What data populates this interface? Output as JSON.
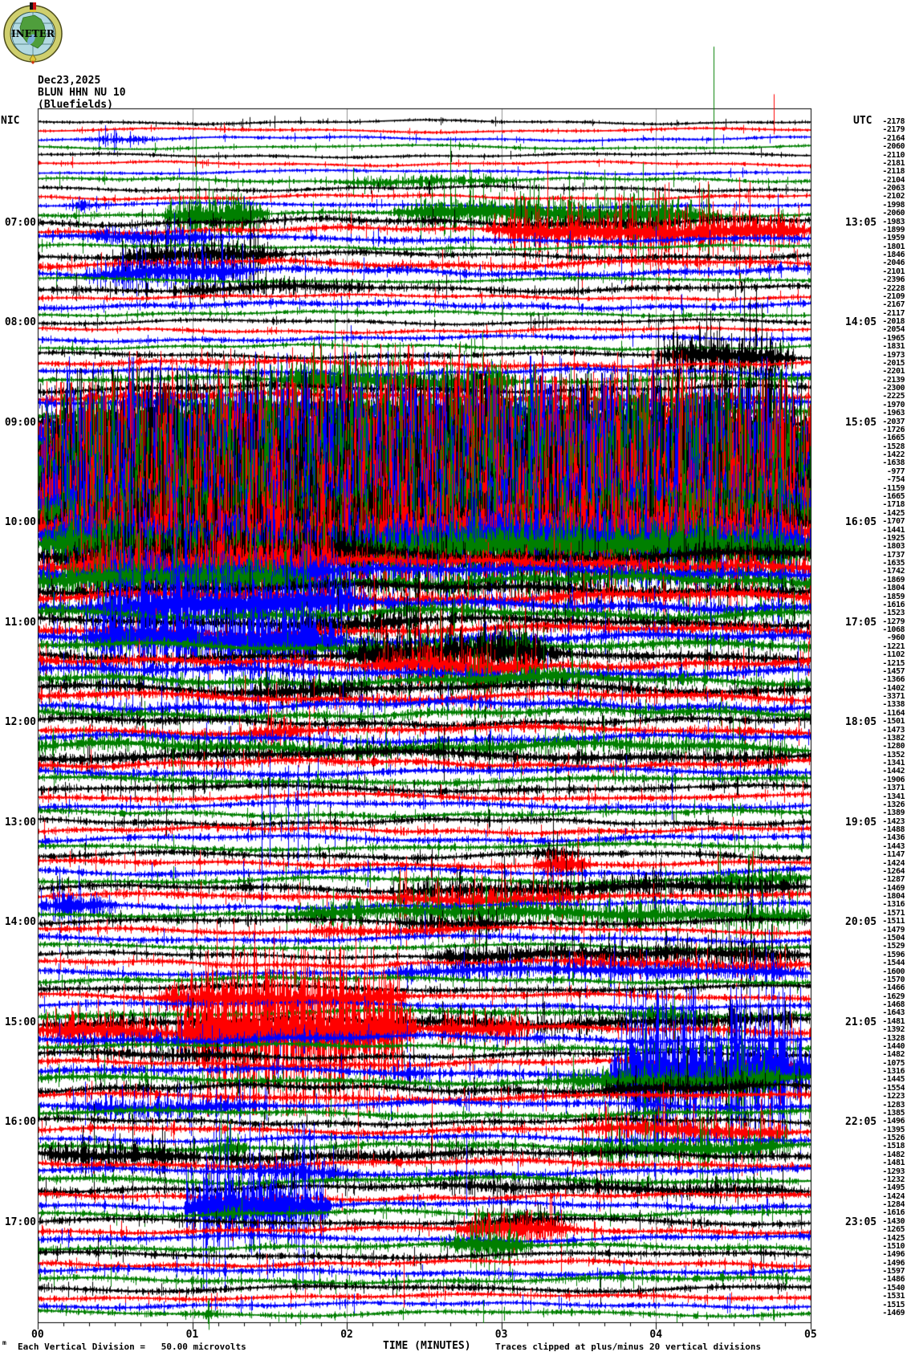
{
  "header": {
    "date": "Dec23,2025",
    "station": "BLUN HHN NU 10",
    "location": "(Bluefields)",
    "logo_text": "INETER",
    "tz_left": "NIC",
    "tz_right": "UTC"
  },
  "footer": {
    "scale_note": "Each Vertical Division =   50.00 microvolts",
    "axis_title": "TIME (MINUTES)",
    "clip_note": "Traces clipped at plus/minus 20 vertical divisions",
    "tiny_mark": "m"
  },
  "x_axis": {
    "tick_labels": [
      "00",
      "01",
      "02",
      "03",
      "04",
      "05"
    ],
    "minor_per_major": 6
  },
  "colors": {
    "trace_cycle": [
      "#000000",
      "#ff0000",
      "#0000ff",
      "#007f00"
    ],
    "grid": "#909090",
    "frame": "#000000",
    "logo_ring": "#cfcf6e",
    "logo_sea": "#b2d9e2",
    "logo_land": "#4f9e3c",
    "logo_lake": "#7ab0d8"
  },
  "hour_rows": [
    {
      "row": 13,
      "nic": "07:00",
      "utc": "13:05"
    },
    {
      "row": 25,
      "nic": "08:00",
      "utc": "14:05"
    },
    {
      "row": 37,
      "nic": "09:00",
      "utc": "15:05"
    },
    {
      "row": 49,
      "nic": "10:00",
      "utc": "16:05"
    },
    {
      "row": 61,
      "nic": "11:00",
      "utc": "17:05"
    },
    {
      "row": 73,
      "nic": "12:00",
      "utc": "18:05"
    },
    {
      "row": 85,
      "nic": "13:00",
      "utc": "19:05"
    },
    {
      "row": 97,
      "nic": "14:00",
      "utc": "20:05"
    },
    {
      "row": 109,
      "nic": "15:00",
      "utc": "21:05"
    },
    {
      "row": 121,
      "nic": "16:00",
      "utc": "22:05"
    },
    {
      "row": 133,
      "nic": "17:00",
      "utc": "23:05"
    }
  ],
  "chart_data": {
    "type": "seismogram-helicorder",
    "station_code": "BLUN HHN NU 10",
    "station_name": "Bluefields",
    "date": "Dec23,2025",
    "start_local": "06:00",
    "end_local": "18:00",
    "minutes_per_line": 5,
    "lines": 144,
    "utc_offset_hours": 6,
    "vertical_division_microvolts": 50.0,
    "clip_divisions": 20,
    "traces": [
      [
        -2178,
        3
      ],
      [
        -2179,
        3
      ],
      [
        -2164,
        3,
        [
          [
            0.25,
            0.8,
            9
          ]
        ]
      ],
      [
        -2060,
        3
      ],
      [
        -2110,
        3
      ],
      [
        -2181,
        3
      ],
      [
        -2118,
        3
      ],
      [
        -2104,
        4,
        [
          [
            1.9,
            3.1,
            11
          ]
        ]
      ],
      [
        -2063,
        4
      ],
      [
        -2102,
        4
      ],
      [
        -1998,
        4,
        [
          [
            0.15,
            0.5,
            12
          ]
        ]
      ],
      [
        -2060,
        5,
        [
          [
            0.8,
            1.5,
            38
          ],
          [
            2.3,
            4.4,
            30
          ]
        ]
      ],
      [
        -1983,
        7,
        [
          [
            2.9,
            4.3,
            12
          ]
        ]
      ],
      [
        -1899,
        6,
        [
          [
            2.9,
            5,
            32
          ]
        ]
      ],
      [
        -1959,
        6,
        [
          [
            0.2,
            1.2,
            16
          ]
        ]
      ],
      [
        -1801,
        4
      ],
      [
        -1846,
        6,
        [
          [
            0.5,
            1.6,
            26
          ]
        ]
      ],
      [
        -2046,
        7
      ],
      [
        -2101,
        7,
        [
          [
            0.3,
            1.4,
            28
          ]
        ]
      ],
      [
        -2396,
        4
      ],
      [
        -2228,
        6,
        [
          [
            0.8,
            2.2,
            13
          ]
        ]
      ],
      [
        -2109,
        4
      ],
      [
        -2167,
        6
      ],
      [
        -2117,
        4
      ],
      [
        -2018,
        4
      ],
      [
        -2054,
        4
      ],
      [
        -1965,
        5
      ],
      [
        -1831,
        4
      ],
      [
        -1973,
        5,
        [
          [
            4.0,
            4.9,
            36
          ]
        ]
      ],
      [
        -2015,
        6
      ],
      [
        -2201,
        6
      ],
      [
        -2139,
        6,
        [
          [
            1.5,
            3.1,
            30
          ]
        ]
      ],
      [
        -2300,
        7
      ],
      [
        -2225,
        8
      ],
      [
        -1970,
        9,
        [
          [
            0.5,
            1.1,
            18
          ]
        ]
      ],
      [
        -1963,
        10,
        [
          [
            1.0,
            4.5,
            22
          ]
        ]
      ],
      [
        -2037,
        12,
        [
          [
            0.3,
            4.8,
            28
          ]
        ]
      ],
      [
        -1726,
        18,
        [
          [
            0.5,
            4.6,
            65
          ]
        ]
      ],
      [
        -1665,
        22,
        [
          [
            0,
            5,
            60
          ]
        ]
      ],
      [
        -1528,
        24,
        [
          [
            0,
            5,
            70
          ]
        ]
      ],
      [
        -1422,
        28,
        [
          [
            0,
            5,
            88
          ]
        ]
      ],
      [
        -1638,
        30,
        [
          [
            0,
            5,
            100
          ]
        ]
      ],
      [
        -977,
        32,
        [
          [
            0,
            5,
            100
          ]
        ]
      ],
      [
        -754,
        32,
        [
          [
            0,
            5,
            100
          ]
        ]
      ],
      [
        -1159,
        32,
        [
          [
            0,
            5,
            92
          ]
        ]
      ],
      [
        -1665,
        30,
        [
          [
            0,
            5,
            88
          ]
        ]
      ],
      [
        -1718,
        28,
        [
          [
            0,
            5,
            80
          ]
        ]
      ],
      [
        -1425,
        26,
        [
          [
            0,
            5,
            70
          ]
        ]
      ],
      [
        -1707,
        24,
        [
          [
            0,
            5,
            60
          ]
        ]
      ],
      [
        -1441,
        24,
        [
          [
            0,
            5,
            68
          ]
        ]
      ],
      [
        -1925,
        20,
        [
          [
            0,
            5,
            50
          ]
        ]
      ],
      [
        -1803,
        18,
        [
          [
            0,
            5,
            45
          ]
        ]
      ],
      [
        -1737,
        16,
        [
          [
            0.2,
            2.2,
            55
          ]
        ]
      ],
      [
        -1635,
        15,
        [
          [
            0.2,
            2.0,
            48
          ]
        ]
      ],
      [
        -1742,
        14,
        [
          [
            0.3,
            2.0,
            40
          ]
        ]
      ],
      [
        -1869,
        13,
        [
          [
            0,
            1.8,
            34
          ]
        ]
      ],
      [
        -1804,
        12
      ],
      [
        -1859,
        12
      ],
      [
        -1616,
        12,
        [
          [
            0.3,
            2.1,
            46
          ]
        ]
      ],
      [
        -1523,
        11
      ],
      [
        -1279,
        10,
        [
          [
            1.5,
            2.6,
            22
          ]
        ]
      ],
      [
        -1068,
        10
      ],
      [
        -960,
        11,
        [
          [
            0.3,
            2.0,
            55
          ]
        ]
      ],
      [
        -1221,
        10,
        [
          [
            2.0,
            3.3,
            28
          ]
        ]
      ],
      [
        -1102,
        10,
        [
          [
            2.0,
            3.4,
            36
          ]
        ]
      ],
      [
        -1215,
        10,
        [
          [
            2.1,
            3.3,
            32
          ]
        ]
      ],
      [
        -1457,
        10
      ],
      [
        -1366,
        10,
        [
          [
            2.6,
            3.6,
            24
          ]
        ]
      ],
      [
        -1402,
        10,
        [
          [
            1.2,
            2.2,
            20
          ]
        ]
      ],
      [
        -3371,
        9
      ],
      [
        -1338,
        9
      ],
      [
        -1164,
        9
      ],
      [
        -1501,
        8
      ],
      [
        -1473,
        8,
        [
          [
            1.3,
            1.8,
            26
          ]
        ]
      ],
      [
        -1382,
        8
      ],
      [
        -1280,
        9,
        [
          [
            0,
            5,
            14
          ]
        ]
      ],
      [
        -1352,
        9,
        [
          [
            0,
            5,
            12
          ]
        ]
      ],
      [
        -1341,
        8
      ],
      [
        -1442,
        7
      ],
      [
        -1906,
        7
      ],
      [
        -1371,
        7
      ],
      [
        -1341,
        6
      ],
      [
        -1326,
        6
      ],
      [
        -1389,
        6
      ],
      [
        -1423,
        6
      ],
      [
        -1488,
        6
      ],
      [
        -1436,
        6
      ],
      [
        -1443,
        6
      ],
      [
        -1147,
        6,
        [
          [
            3.2,
            3.5,
            25
          ]
        ]
      ],
      [
        -1424,
        6,
        [
          [
            3.2,
            3.6,
            30
          ]
        ]
      ],
      [
        -1264,
        6
      ],
      [
        -1287,
        6,
        [
          [
            4.2,
            5,
            18
          ]
        ]
      ],
      [
        -1469,
        7,
        [
          [
            2.3,
            5,
            18
          ]
        ]
      ],
      [
        -1804,
        7,
        [
          [
            2.2,
            3.5,
            22
          ]
        ]
      ],
      [
        -1316,
        6,
        [
          [
            0,
            0.5,
            28
          ]
        ]
      ],
      [
        -1571,
        6,
        [
          [
            1.6,
            5,
            22
          ]
        ]
      ],
      [
        -1511,
        6,
        [
          [
            2.3,
            3.1,
            16
          ]
        ]
      ],
      [
        -1479,
        6,
        [
          [
            1.7,
            2.9,
            14
          ]
        ]
      ],
      [
        -1504,
        6
      ],
      [
        -1529,
        5
      ],
      [
        -1596,
        5,
        [
          [
            2.5,
            5,
            20
          ]
        ]
      ],
      [
        -1544,
        6,
        [
          [
            3.3,
            5,
            14
          ]
        ]
      ],
      [
        -1600,
        6,
        [
          [
            2.2,
            5,
            16
          ]
        ]
      ],
      [
        -1570,
        6
      ],
      [
        -1466,
        6,
        [
          [
            1.0,
            1.6,
            10
          ]
        ]
      ],
      [
        -1629,
        6,
        [
          [
            0.75,
            2.4,
            32
          ]
        ]
      ],
      [
        -1468,
        6
      ],
      [
        -1643,
        7,
        [
          [
            3.8,
            4.4,
            18
          ]
        ]
      ],
      [
        -1481,
        7,
        [
          [
            0,
            1.3,
            14
          ],
          [
            2.2,
            5,
            16
          ]
        ]
      ],
      [
        -1392,
        8,
        [
          [
            0,
            0.9,
            28
          ],
          [
            0.9,
            2.45,
            85
          ],
          [
            2.45,
            3.2,
            25
          ]
        ]
      ],
      [
        -1328,
        7,
        [
          [
            0,
            2.3,
            12
          ]
        ]
      ],
      [
        -1440,
        6
      ],
      [
        -1482,
        6,
        [
          [
            0.3,
            1.5,
            14
          ]
        ]
      ],
      [
        -1075,
        6
      ],
      [
        -1316,
        8,
        [
          [
            2.3,
            2.5,
            30
          ],
          [
            3.7,
            5,
            85
          ]
        ]
      ],
      [
        -1445,
        8,
        [
          [
            3.4,
            4.9,
            28
          ]
        ]
      ],
      [
        -1554,
        8,
        [
          [
            3.6,
            4.7,
            20
          ]
        ]
      ],
      [
        -1223,
        7
      ],
      [
        -1283,
        7,
        [
          [
            0.2,
            1.5,
            20
          ]
        ]
      ],
      [
        -1385,
        7
      ],
      [
        -1496,
        6
      ],
      [
        -1395,
        6,
        [
          [
            3.5,
            4.9,
            22
          ]
        ]
      ],
      [
        -1526,
        6
      ],
      [
        -1518,
        7,
        [
          [
            1.1,
            1.35,
            40
          ],
          [
            3.4,
            4.9,
            26
          ]
        ]
      ],
      [
        -1482,
        8,
        [
          [
            0,
            1.05,
            24
          ],
          [
            1.05,
            2.9,
            13
          ]
        ]
      ],
      [
        -1481,
        7
      ],
      [
        -1293,
        7,
        [
          [
            1.25,
            2.1,
            18
          ]
        ]
      ],
      [
        -1232,
        7
      ],
      [
        -1495,
        7,
        [
          [
            2.5,
            5,
            14
          ]
        ]
      ],
      [
        -1424,
        6
      ],
      [
        -1284,
        6,
        [
          [
            0.95,
            1.9,
            65
          ]
        ]
      ],
      [
        -1616,
        6,
        [
          [
            1.0,
            1.5,
            12
          ]
        ]
      ],
      [
        -1430,
        6,
        [
          [
            2.8,
            3.4,
            20
          ]
        ]
      ],
      [
        -1265,
        6,
        [
          [
            2.7,
            3.5,
            30
          ]
        ]
      ],
      [
        -1425,
        6
      ],
      [
        -1510,
        6,
        [
          [
            2.6,
            3.2,
            32
          ]
        ]
      ],
      [
        -1496,
        6
      ],
      [
        -1496,
        6
      ],
      [
        -1597,
        6
      ],
      [
        -1486,
        6
      ],
      [
        -1540,
        6
      ],
      [
        -1531,
        5
      ],
      [
        -1515,
        5
      ],
      [
        -1469,
        5,
        [
          [
            0.9,
            1.3,
            10
          ]
        ]
      ]
    ],
    "spikes": [
      [
        2,
        4.76,
        45,
        5
      ],
      [
        4,
        4.37,
        125,
        8
      ],
      [
        76,
        0.87,
        5,
        70
      ],
      [
        76,
        0.93,
        5,
        60
      ],
      [
        79,
        1.5,
        8,
        115
      ],
      [
        79,
        1.62,
        8,
        120
      ],
      [
        79,
        1.75,
        8,
        110
      ],
      [
        79,
        4.1,
        8,
        60
      ],
      [
        81,
        3.35,
        40,
        10
      ],
      [
        83,
        1.5,
        60,
        60
      ],
      [
        83,
        1.68,
        50,
        70
      ],
      [
        87,
        1.45,
        95,
        95
      ],
      [
        99,
        2.5,
        35,
        8
      ],
      [
        118,
        2.07,
        8,
        90
      ],
      [
        118,
        2.55,
        8,
        70
      ],
      [
        123,
        2.77,
        10,
        100
      ],
      [
        138,
        2.37,
        5,
        55
      ]
    ]
  }
}
